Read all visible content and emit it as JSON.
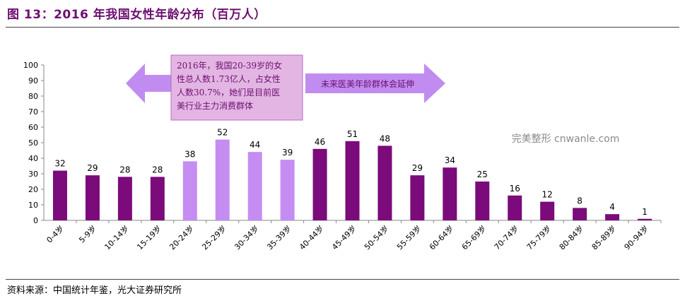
{
  "header": {
    "title": "图 13：2016 年我国女性年龄分布（百万人）"
  },
  "footer": {
    "source": "资料来源：中国统计年鉴，光大证券研究所"
  },
  "annotations": {
    "callout_box": "2016年，我国20-39岁的女性总人数1.73亿人，占女性人数30.7%，她们是目前医美行业主力消费群体",
    "callout_lines": [
      "2016年，我国20-39岁的女",
      "性总人数1.73亿人，占女性",
      "人数30.7%，她们是目前医",
      "美行业主力消费群体"
    ],
    "arrow_right_text": "未来医美年龄群体会延伸",
    "watermark": "完美整形 cnwanle.com"
  },
  "colors": {
    "dark_bar": "#7b0a7b",
    "light_bar": "#c58cf2",
    "callout_bg": "#e3b5e3",
    "arrow_fill": "#c18cf0",
    "text_purple": "#6d0f70"
  },
  "chart_data": {
    "type": "bar",
    "categories": [
      "0-4岁",
      "5-9岁",
      "10-14岁",
      "15-19岁",
      "20-24岁",
      "25-29岁",
      "30-34岁",
      "35-39岁",
      "40-44岁",
      "45-49岁",
      "50-54岁",
      "55-59岁",
      "60-64岁",
      "65-69岁",
      "70-74岁",
      "75-79岁",
      "80-84岁",
      "85-89岁",
      "90-94岁"
    ],
    "values": [
      32,
      29,
      28,
      28,
      38,
      52,
      44,
      39,
      46,
      51,
      48,
      29,
      34,
      25,
      16,
      12,
      8,
      4,
      1
    ],
    "highlight_categories": [
      "20-24岁",
      "25-29岁",
      "30-34岁",
      "35-39岁"
    ],
    "ylim": [
      0,
      100
    ],
    "yticks": [
      0,
      10,
      20,
      30,
      40,
      50,
      60,
      70,
      80,
      90,
      100
    ],
    "title": "",
    "xlabel": "",
    "ylabel": "",
    "grid": false,
    "data_labels": true
  }
}
